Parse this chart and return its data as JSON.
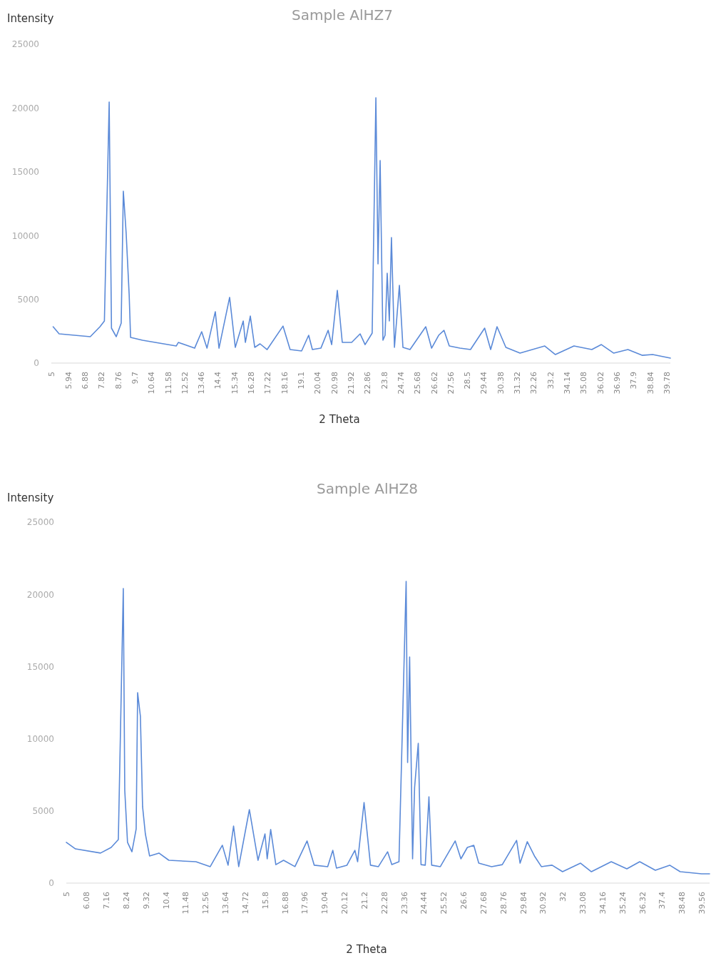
{
  "chart_data": [
    {
      "type": "line",
      "title": "Sample AlHZ7",
      "xlabel": "2 Theta",
      "ylabel": "Intensity",
      "color": "#5b8ad8",
      "x": [
        5.1,
        5.44,
        7.2,
        7.75,
        8.0,
        8.27,
        8.4,
        8.67,
        8.95,
        9.07,
        9.23,
        9.4,
        9.48,
        10.16,
        12.06,
        12.18,
        13.1,
        13.5,
        13.8,
        14.27,
        14.48,
        15.08,
        15.4,
        15.85,
        15.97,
        16.25,
        16.5,
        16.8,
        17.2,
        18.1,
        18.5,
        19.15,
        19.55,
        19.76,
        20.24,
        20.65,
        20.85,
        21.17,
        21.45,
        21.98,
        22.46,
        22.74,
        23.14,
        23.35,
        23.47,
        23.59,
        23.75,
        23.87,
        23.99,
        24.11,
        24.23,
        24.4,
        24.68,
        24.88,
        25.28,
        26.17,
        26.5,
        26.9,
        27.2,
        27.5,
        28.1,
        28.7,
        29.5,
        29.84,
        30.2,
        30.7,
        31.5,
        32.9,
        33.5,
        34.55,
        35.56,
        36.1,
        36.8,
        37.6,
        38.4,
        39.0,
        40.0
      ],
      "values": [
        2850,
        2290,
        2070,
        2850,
        3300,
        20470,
        2740,
        2070,
        3130,
        13480,
        10180,
        5370,
        2010,
        1790,
        1340,
        1620,
        1170,
        2460,
        1170,
        4030,
        1170,
        5150,
        1230,
        3300,
        1620,
        3690,
        1230,
        1510,
        1060,
        2900,
        1060,
        950,
        2180,
        1060,
        1170,
        2570,
        1450,
        5700,
        1620,
        1620,
        2290,
        1450,
        2350,
        20800,
        7770,
        15880,
        1790,
        2180,
        7050,
        3300,
        9840,
        1230,
        6100,
        1230,
        1060,
        2850,
        1170,
        2180,
        2570,
        1340,
        1170,
        1060,
        2740,
        1060,
        2850,
        1230,
        780,
        1340,
        670,
        1340,
        1060,
        1450,
        780,
        1060,
        610,
        670,
        390
      ],
      "xlim": [
        5,
        40
      ],
      "ylim": [
        0,
        25000
      ],
      "yticks": [
        0,
        5000,
        10000,
        15000,
        20000,
        25000
      ],
      "xticks": [
        5,
        5.94,
        6.88,
        7.82,
        8.76,
        9.7,
        10.64,
        11.58,
        12.52,
        13.46,
        14.4,
        15.34,
        16.28,
        17.22,
        18.16,
        19.1,
        20.04,
        20.98,
        21.92,
        22.86,
        23.8,
        24.74,
        25.68,
        26.62,
        27.56,
        28.5,
        29.44,
        30.38,
        31.32,
        32.26,
        33.2,
        34.14,
        35.08,
        36.02,
        36.96,
        37.9,
        38.84,
        39.78
      ]
    },
    {
      "type": "line",
      "title": "Sample AlHZ8",
      "xlabel": "2 Theta",
      "ylabel": "Intensity",
      "color": "#5b8ad8",
      "x": [
        5,
        5.5,
        6.86,
        7.44,
        7.83,
        8.1,
        8.18,
        8.33,
        8.57,
        8.8,
        8.88,
        9.03,
        9.15,
        9.3,
        9.53,
        10.04,
        10.58,
        12.05,
        12.83,
        13.49,
        13.8,
        14.1,
        14.38,
        14.96,
        15.43,
        15.81,
        15.93,
        16.12,
        16.4,
        16.82,
        17.44,
        18.1,
        18.49,
        19.22,
        19.5,
        19.7,
        20.27,
        20.7,
        20.85,
        21.2,
        21.55,
        21.98,
        22.48,
        22.71,
        23.1,
        23.49,
        23.57,
        23.68,
        23.84,
        23.95,
        24.15,
        24.3,
        24.53,
        24.73,
        24.88,
        25.35,
        26.16,
        26.47,
        26.82,
        27.17,
        27.44,
        28.14,
        28.72,
        29.5,
        29.69,
        30.08,
        30.47,
        30.85,
        31.43,
        32.0,
        32.98,
        33.57,
        34.65,
        35.5,
        36.2,
        37.05,
        37.83,
        38.4,
        39.57,
        40
      ],
      "values": [
        2820,
        2370,
        2080,
        2470,
        3010,
        20400,
        6420,
        2820,
        2170,
        3750,
        13190,
        11560,
        5290,
        3410,
        1880,
        2080,
        1580,
        1480,
        1140,
        2620,
        1240,
        3950,
        1140,
        5090,
        1580,
        3410,
        1680,
        3710,
        1280,
        1580,
        1140,
        2920,
        1240,
        1140,
        2270,
        1040,
        1240,
        2270,
        1480,
        5580,
        1240,
        1140,
        2170,
        1280,
        1480,
        20900,
        8350,
        15660,
        1680,
        6620,
        9680,
        1280,
        1240,
        5980,
        1240,
        1140,
        2920,
        1680,
        2470,
        2620,
        1380,
        1140,
        1280,
        2960,
        1380,
        2870,
        1880,
        1140,
        1240,
        790,
        1380,
        790,
        1480,
        990,
        1480,
        890,
        1240,
        790,
        640,
        640
      ],
      "xlim": [
        5,
        40
      ],
      "ylim": [
        0,
        25000
      ],
      "yticks": [
        0,
        5000,
        10000,
        15000,
        20000,
        25000
      ],
      "xticks": [
        5,
        6.08,
        7.16,
        8.24,
        9.32,
        10.4,
        11.48,
        12.56,
        13.64,
        14.72,
        15.8,
        16.88,
        17.96,
        19.04,
        20.12,
        21.2,
        22.28,
        23.36,
        24.44,
        25.52,
        26.6,
        27.68,
        28.76,
        29.84,
        30.92,
        32,
        33.08,
        34.16,
        35.24,
        36.32,
        37.4,
        38.48,
        39.56
      ]
    }
  ]
}
